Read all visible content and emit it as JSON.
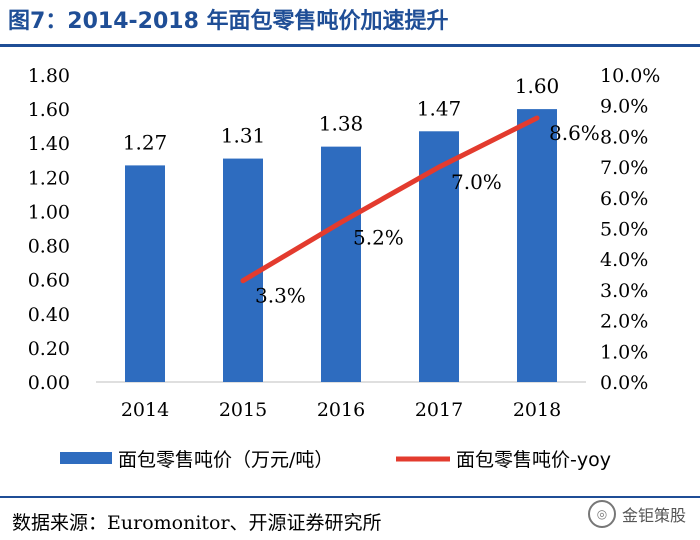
{
  "figure": {
    "title": "图7：2014-2018 年面包零售吨价加速提升",
    "source": "数据来源：Euromonitor、开源证券研究所",
    "watermark": "金钜策股"
  },
  "colors": {
    "bar": "#2e6cbf",
    "line": "#e33b2e",
    "accent": "#1f4e96"
  },
  "chart_data": {
    "type": "bar",
    "categories": [
      "2014",
      "2015",
      "2016",
      "2017",
      "2018"
    ],
    "series": [
      {
        "name": "面包零售吨价（万元/吨）",
        "type": "bar",
        "axis": "left",
        "values": [
          1.27,
          1.31,
          1.38,
          1.47,
          1.6
        ],
        "labels": [
          "1.27",
          "1.31",
          "1.38",
          "1.47",
          "1.60"
        ]
      },
      {
        "name": "面包零售吨价-yoy",
        "type": "line",
        "axis": "right",
        "values": [
          null,
          3.3,
          5.2,
          7.0,
          8.6
        ],
        "labels": [
          "",
          "3.3%",
          "5.2%",
          "7.0%",
          "8.6%"
        ]
      }
    ],
    "ylim": [
      0,
      1.8
    ],
    "yticks": [
      "0.00",
      "0.20",
      "0.40",
      "0.60",
      "0.80",
      "1.00",
      "1.20",
      "1.40",
      "1.60",
      "1.80"
    ],
    "y2lim": [
      0,
      10
    ],
    "y2ticks": [
      "0.0%",
      "1.0%",
      "2.0%",
      "3.0%",
      "4.0%",
      "5.0%",
      "6.0%",
      "7.0%",
      "8.0%",
      "9.0%",
      "10.0%"
    ],
    "legend": [
      "面包零售吨价（万元/吨）",
      "面包零售吨价-yoy"
    ],
    "legend_position": "bottom"
  }
}
